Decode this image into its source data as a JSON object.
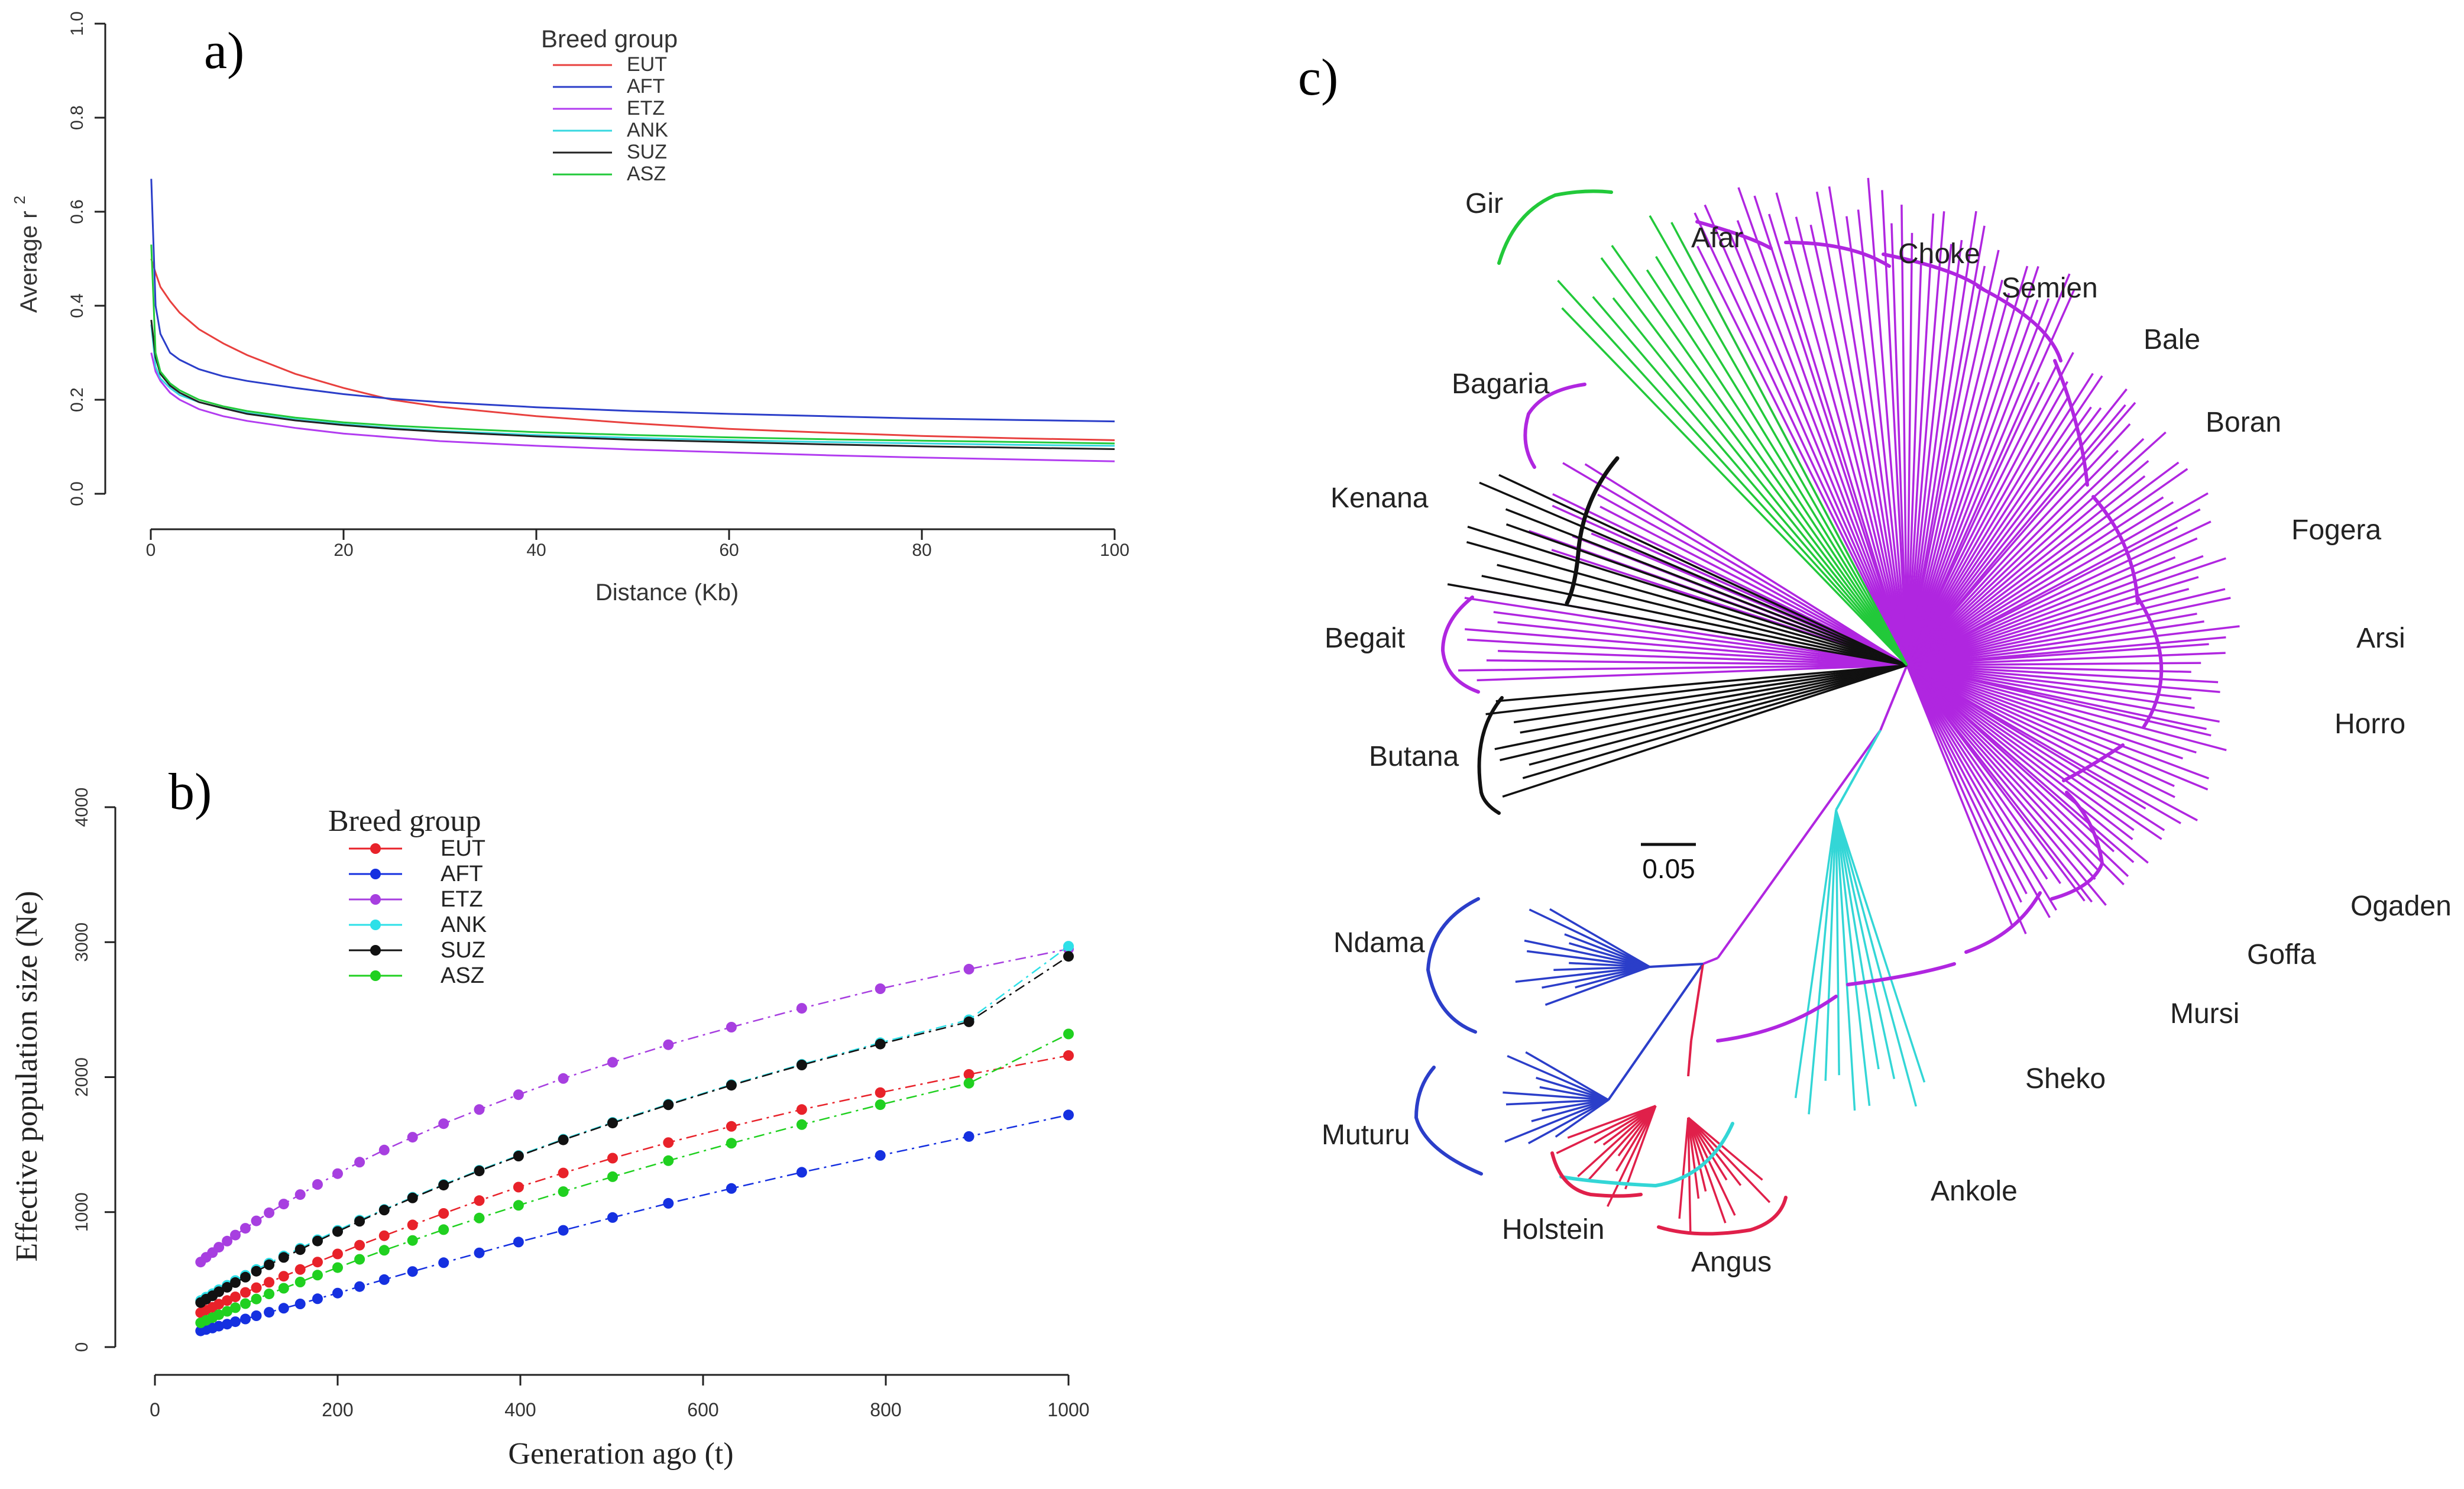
{
  "panels": {
    "a": {
      "panel_label": "a)",
      "chart_data": {
        "type": "line",
        "title": "",
        "xlabel": "Distance (Kb)",
        "ylabel": "Average r",
        "ylabel_superscript": "2",
        "xlim": [
          0,
          100
        ],
        "ylim": [
          0,
          1.0
        ],
        "xticks": [
          0,
          20,
          40,
          60,
          80,
          100
        ],
        "yticks": [
          0.0,
          0.2,
          0.4,
          0.6,
          0.8,
          1.0
        ],
        "legend_title": "Breed group",
        "legend_position": "top-center",
        "x": [
          0.05,
          0.5,
          1,
          2,
          3,
          5,
          7.5,
          10,
          15,
          20,
          25,
          30,
          40,
          50,
          60,
          70,
          80,
          90,
          100
        ],
        "series": [
          {
            "name": "EUT",
            "color": "#e8403e",
            "values": [
              0.5,
              0.47,
              0.44,
              0.41,
              0.385,
              0.35,
              0.32,
              0.295,
              0.255,
              0.225,
              0.2,
              0.185,
              0.165,
              0.15,
              0.138,
              0.13,
              0.123,
              0.118,
              0.114
            ]
          },
          {
            "name": "AFT",
            "color": "#2b3ec9",
            "values": [
              0.67,
              0.4,
              0.34,
              0.3,
              0.285,
              0.265,
              0.25,
              0.24,
              0.225,
              0.212,
              0.202,
              0.195,
              0.184,
              0.176,
              0.17,
              0.165,
              0.16,
              0.157,
              0.154
            ]
          },
          {
            "name": "ETZ",
            "color": "#b23cf0",
            "values": [
              0.3,
              0.26,
              0.24,
              0.215,
              0.2,
              0.18,
              0.165,
              0.155,
              0.14,
              0.128,
              0.12,
              0.112,
              0.102,
              0.094,
              0.088,
              0.082,
              0.077,
              0.073,
              0.069
            ]
          },
          {
            "name": "ANK",
            "color": "#36d8e0",
            "values": [
              0.36,
              0.27,
              0.245,
              0.225,
              0.21,
              0.195,
              0.182,
              0.172,
              0.158,
              0.148,
              0.14,
              0.134,
              0.125,
              0.119,
              0.114,
              0.11,
              0.107,
              0.104,
              0.102
            ]
          },
          {
            "name": "SUZ",
            "color": "#222222",
            "values": [
              0.37,
              0.29,
              0.255,
              0.23,
              0.215,
              0.195,
              0.182,
              0.17,
              0.156,
              0.146,
              0.138,
              0.132,
              0.122,
              0.115,
              0.11,
              0.105,
              0.101,
              0.098,
              0.095
            ]
          },
          {
            "name": "ASZ",
            "color": "#22c93a",
            "values": [
              0.53,
              0.3,
              0.26,
              0.235,
              0.22,
              0.2,
              0.186,
              0.176,
              0.162,
              0.152,
              0.145,
              0.14,
              0.131,
              0.125,
              0.12,
              0.116,
              0.113,
              0.11,
              0.107
            ]
          }
        ]
      }
    },
    "b": {
      "panel_label": "b)",
      "chart_data": {
        "type": "line",
        "title": "",
        "xlabel": "Generation ago (t)",
        "ylabel": "Effective population size (Ne)",
        "xlim": [
          0,
          1000
        ],
        "ylim": [
          0,
          4000
        ],
        "xticks": [
          0,
          200,
          400,
          600,
          800,
          1000
        ],
        "yticks": [
          0,
          1000,
          2000,
          3000,
          4000
        ],
        "legend_title": "Breed group",
        "legend_position": "top-left",
        "x": [
          50,
          56,
          63,
          70,
          79,
          88,
          99,
          111,
          125,
          141,
          159,
          178,
          200,
          224,
          251,
          282,
          316,
          355,
          398,
          447,
          501,
          562,
          631,
          708,
          794,
          891,
          1000
        ],
        "series": [
          {
            "name": "EUT",
            "color": "#e8222a",
            "values": [
              255,
              275,
              295,
              318,
              345,
              372,
              405,
              440,
              480,
              525,
              575,
              630,
              690,
              755,
              825,
              905,
              990,
              1085,
              1185,
              1290,
              1400,
              1515,
              1635,
              1760,
              1885,
              2020,
              2160
            ]
          },
          {
            "name": "AFT",
            "color": "#1530e0",
            "values": [
              120,
              130,
              141,
              155,
              170,
              188,
              208,
              232,
              258,
              288,
              320,
              358,
              400,
              448,
              500,
              560,
              625,
              698,
              778,
              865,
              960,
              1065,
              1175,
              1295,
              1420,
              1560,
              1720
            ]
          },
          {
            "name": "ETZ",
            "color": "#a73fe0",
            "values": [
              630,
              665,
              700,
              740,
              785,
              830,
              880,
              935,
              995,
              1060,
              1130,
              1205,
              1285,
              1370,
              1460,
              1555,
              1655,
              1760,
              1870,
              1990,
              2110,
              2240,
              2370,
              2510,
              2655,
              2800,
              2950
            ]
          },
          {
            "name": "ANK",
            "color": "#2ee0e8",
            "values": [
              345,
              370,
              395,
              425,
              458,
              493,
              532,
              575,
              622,
              675,
              732,
              795,
              865,
              940,
              1020,
              1110,
              1205,
              1310,
              1420,
              1540,
              1665,
              1800,
              1945,
              2095,
              2255,
              2425,
              2970
            ]
          },
          {
            "name": "SUZ",
            "color": "#111111",
            "values": [
              330,
              355,
              380,
              410,
              443,
              478,
              518,
              562,
              610,
              664,
              722,
              786,
              856,
              932,
              1015,
              1105,
              1200,
              1305,
              1415,
              1535,
              1660,
              1795,
              1940,
              2090,
              2245,
              2410,
              2895
            ]
          },
          {
            "name": "ASZ",
            "color": "#20d020",
            "values": [
              180,
              198,
              218,
              240,
              265,
              292,
              322,
              356,
              394,
              436,
              482,
              533,
              589,
              650,
              717,
              790,
              870,
              956,
              1050,
              1152,
              1262,
              1381,
              1510,
              1648,
              1796,
              1955,
              2320
            ]
          }
        ]
      }
    },
    "c": {
      "panel_label": "c)",
      "chart_data": {
        "type": "tree",
        "scale_bar": "0.05",
        "groups": [
          {
            "name": "AFT",
            "color": "#2b3ec9",
            "taxa": [
              "Ndama",
              "Muturu"
            ]
          },
          {
            "name": "EUT",
            "color": "#e0204a",
            "taxa": [
              "Holstein",
              "Angus"
            ]
          },
          {
            "name": "ANK",
            "color": "#33d6d6",
            "taxa": [
              "Ankole"
            ]
          },
          {
            "name": "ETZ",
            "color": "#b026e0",
            "taxa": [
              "Sheko",
              "Mursi",
              "Goffa",
              "Ogaden",
              "Horro",
              "Arsi",
              "Fogera",
              "Boran",
              "Bale",
              "Semien",
              "Choke",
              "Afar",
              "Bagaria",
              "Begait"
            ]
          },
          {
            "name": "ASZ",
            "color": "#22c93a",
            "taxa": [
              "Gir"
            ]
          },
          {
            "name": "SUZ",
            "color": "#111111",
            "taxa": [
              "Kenana",
              "Butana"
            ]
          }
        ]
      }
    }
  }
}
